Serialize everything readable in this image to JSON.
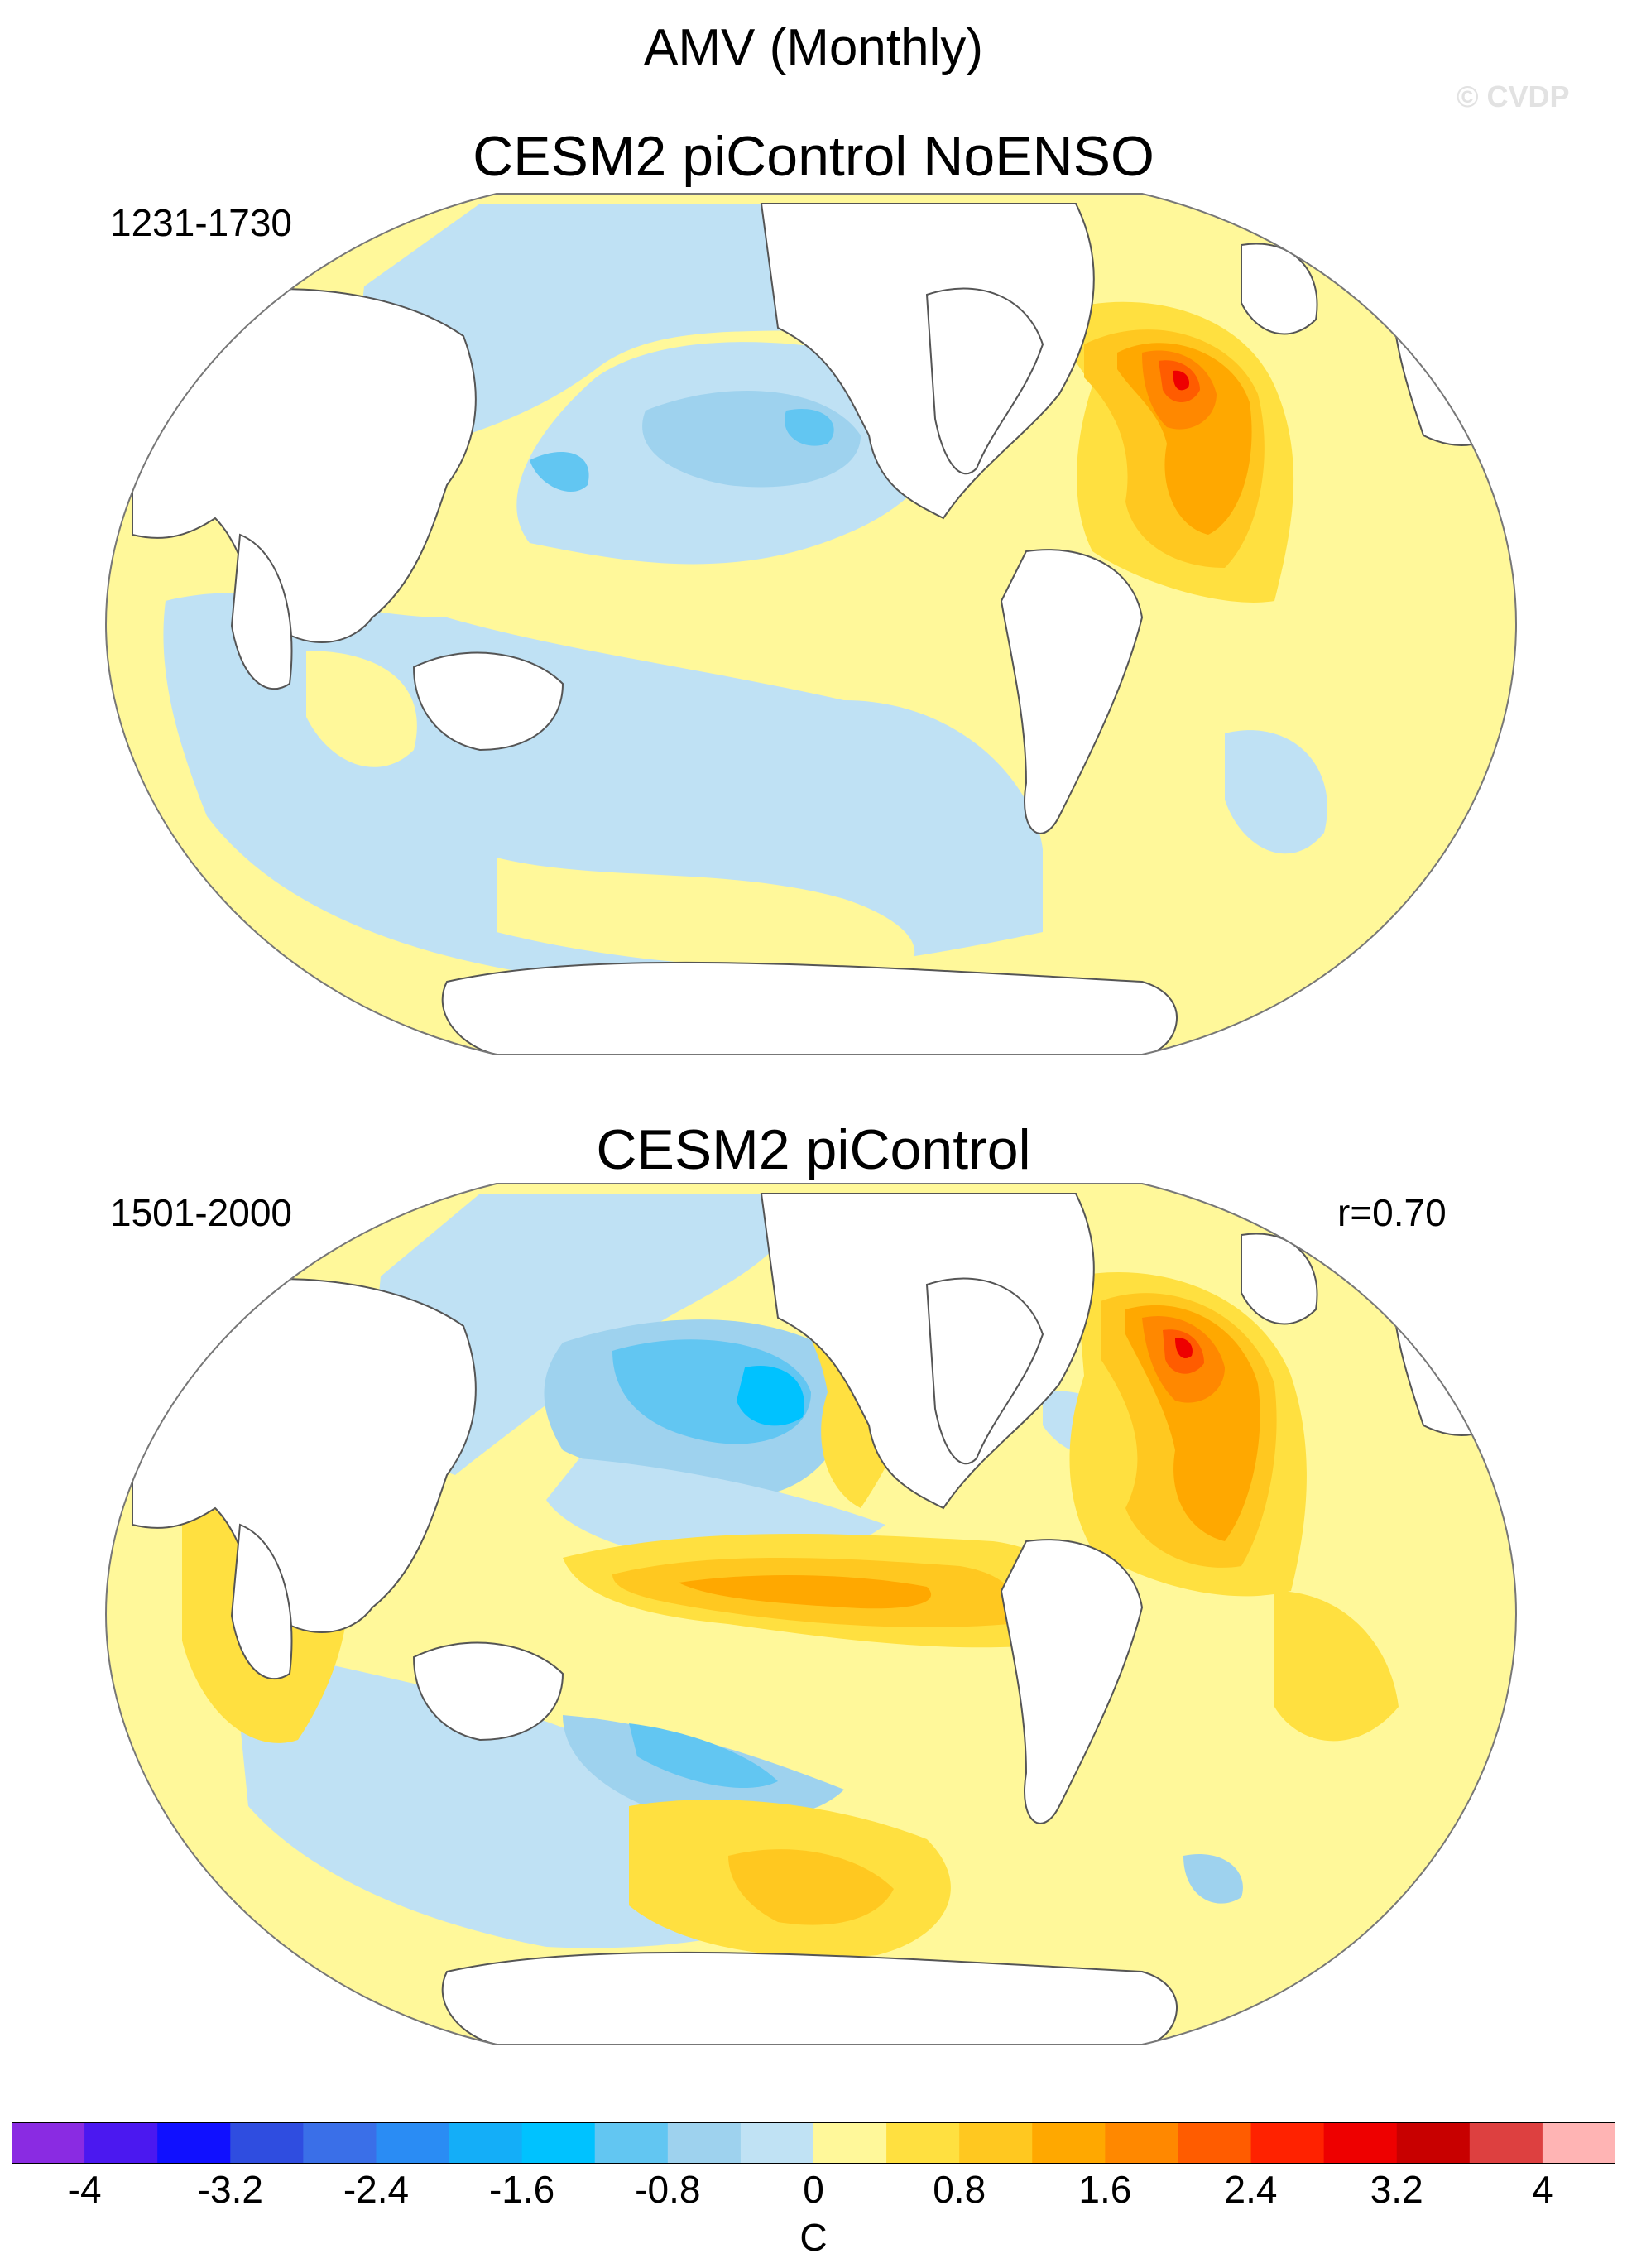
{
  "figure": {
    "title": "AMV (Monthly)",
    "copyright": "© CVDP"
  },
  "panels": [
    {
      "title": "CESM2 piControl NoENSO",
      "years": "1231-1730",
      "correlation": ""
    },
    {
      "title": "CESM2 piControl",
      "years": "1501-2000",
      "correlation": "r=0.70"
    }
  ],
  "colorbar": {
    "units": "C",
    "tick_labels": [
      "-4",
      "-3.2",
      "-2.4",
      "-1.6",
      "-0.8",
      "0",
      "0.8",
      "1.6",
      "2.4",
      "3.2",
      "4"
    ],
    "colors": [
      "#8a2be2",
      "#4b18f0",
      "#1010ff",
      "#2f4de0",
      "#3a6fe8",
      "#2a8cf4",
      "#14aef8",
      "#00c2ff",
      "#62c6f2",
      "#9ed2ee",
      "#c0e2f4",
      "#fff89a",
      "#ffe040",
      "#ffc820",
      "#ffa800",
      "#ff8800",
      "#ff5c00",
      "#ff2200",
      "#ee0000",
      "#c80000",
      "#dd4040",
      "#ffb4b4"
    ]
  },
  "colors": {
    "land": "#ffffff",
    "coast": "#555555",
    "neutral_neg": "#bfe1f4",
    "neutral_pos": "#fff89a"
  }
}
